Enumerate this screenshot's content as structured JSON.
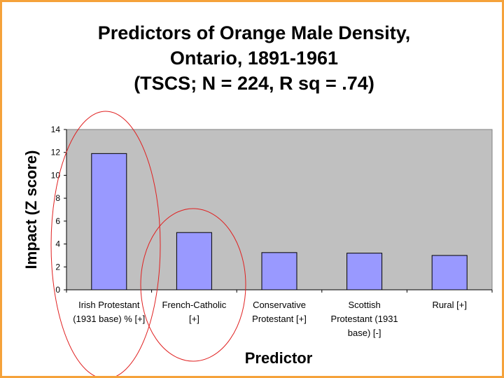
{
  "title_lines": [
    "Predictors of Orange Male Density,",
    "Ontario, 1891-1961",
    "(TSCS; N = 224, R sq = .74)"
  ],
  "colors": {
    "frame": "#f5a23a",
    "plot_bg": "#c0c0c0",
    "bar": "#9999ff",
    "circle": "#e02020"
  },
  "chart_data": {
    "type": "bar",
    "title": "Predictors of Orange Male Density, Ontario, 1891-1961 (TSCS; N = 224, R sq = .74)",
    "xlabel": "Predictor",
    "ylabel": "Impact (Z score)",
    "ylim": [
      0,
      14
    ],
    "yticks": [
      0,
      2,
      4,
      6,
      8,
      10,
      12,
      14
    ],
    "grid": false,
    "categories": [
      [
        "Irish Protestant",
        "(1931 base) % [+]"
      ],
      [
        "French-Catholic",
        "[+]"
      ],
      [
        "Conservative",
        "Protestant [+]"
      ],
      [
        "Scottish",
        "Protestant (1931",
        "base) [-]"
      ],
      [
        "Rural [+]"
      ]
    ],
    "values": [
      11.9,
      5.0,
      3.25,
      3.2,
      3.0
    ],
    "annotations": [
      "red circle around Irish Protestant",
      "red circle around French-Catholic"
    ]
  }
}
